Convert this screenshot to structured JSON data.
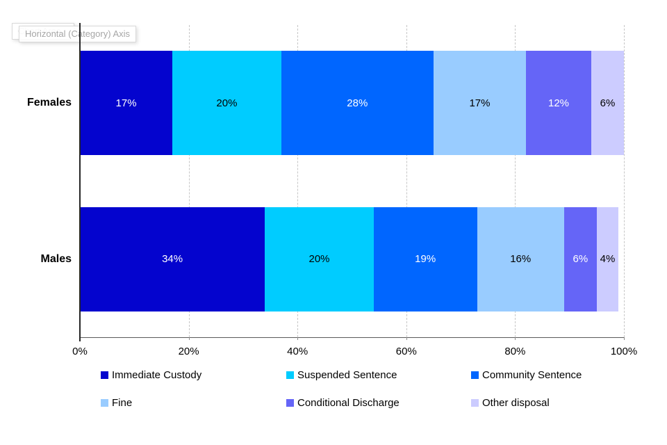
{
  "tooltips": {
    "back": "Chart Area",
    "front": "Horizontal (Category) Axis"
  },
  "chart_data": {
    "type": "bar",
    "orientation": "horizontal",
    "stacked": true,
    "title": "",
    "xlabel": "",
    "ylabel": "",
    "categories": [
      "Females",
      "Males"
    ],
    "series": [
      {
        "name": "Immediate Custody",
        "color": "#0404CE",
        "label_color": "#FFFFFF",
        "values": [
          17,
          34
        ],
        "labels": [
          "17%",
          "34%"
        ]
      },
      {
        "name": "Suspended Sentence",
        "color": "#00CCFF",
        "label_color": "#000000",
        "values": [
          20,
          20
        ],
        "labels": [
          "20%",
          "20%"
        ]
      },
      {
        "name": "Community Sentence",
        "color": "#0066FF",
        "label_color": "#FFFFFF",
        "values": [
          28,
          19
        ],
        "labels": [
          "28%",
          "19%"
        ]
      },
      {
        "name": "Fine",
        "color": "#99CCFF",
        "label_color": "#000000",
        "values": [
          17,
          16
        ],
        "labels": [
          "17%",
          "16%"
        ]
      },
      {
        "name": "Conditional Discharge",
        "color": "#6565F7",
        "label_color": "#FFFFFF",
        "values": [
          12,
          6
        ],
        "labels": [
          "12%",
          "6%"
        ]
      },
      {
        "name": "Other disposal",
        "color": "#CCCCFF",
        "label_color": "#000000",
        "values": [
          6,
          4
        ],
        "labels": [
          "6%",
          "4%"
        ]
      }
    ],
    "x_axis": {
      "min": 0,
      "max": 100,
      "ticks": [
        "0%",
        "20%",
        "40%",
        "60%",
        "80%",
        "100%"
      ],
      "tick_values": [
        0,
        20,
        40,
        60,
        80,
        100
      ],
      "gridlines": "dashed"
    },
    "legend": {
      "position": "bottom",
      "entries": [
        "Immediate Custody",
        "Suspended Sentence",
        "Community Sentence",
        "Fine",
        "Conditional Discharge",
        "Other disposal"
      ]
    }
  }
}
